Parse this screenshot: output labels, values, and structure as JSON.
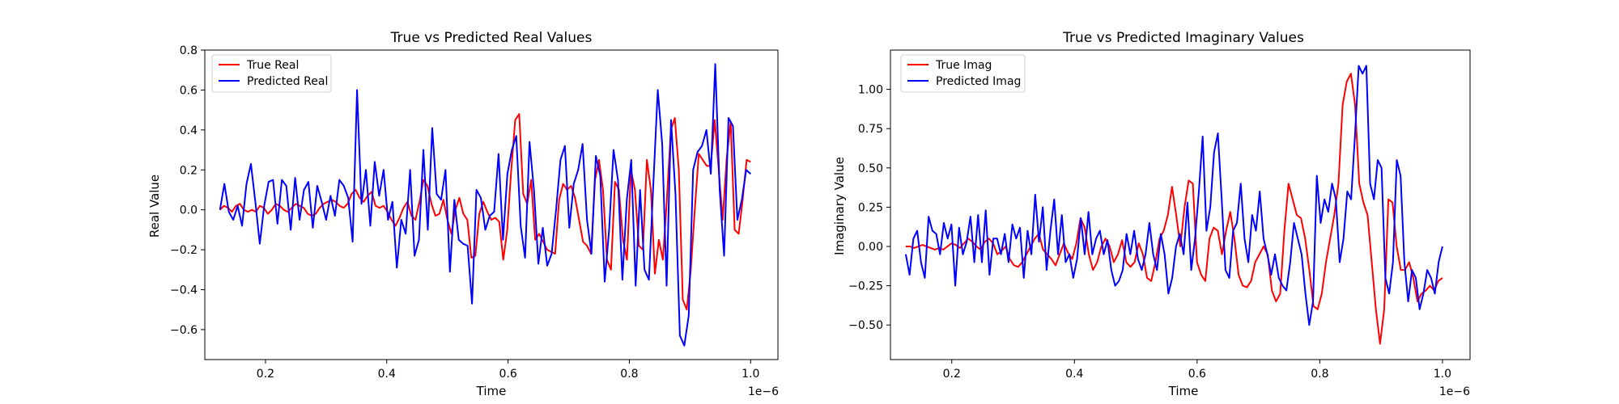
{
  "chart_data": [
    {
      "type": "line",
      "title": "True vs Predicted Real Values",
      "xlabel": "Time",
      "ylabel": "Real Value",
      "x_offset_label": "1e−6",
      "xlim": [
        0.1,
        1.045
      ],
      "ylim": [
        -0.75,
        0.8
      ],
      "x_ticks": [
        0.2,
        0.4,
        0.6,
        0.8,
        1.0
      ],
      "x_tick_labels": [
        "0.2",
        "0.4",
        "0.6",
        "0.8",
        "1.0"
      ],
      "y_ticks": [
        -0.6,
        -0.4,
        -0.2,
        0.0,
        0.2,
        0.4,
        0.6,
        0.8
      ],
      "y_tick_labels": [
        "−0.6",
        "−0.4",
        "−0.2",
        "0.0",
        "0.2",
        "0.4",
        "0.6",
        "0.8"
      ],
      "x_start": 0.125,
      "x_end": 1.0,
      "legend_position": "top-left",
      "series": [
        {
          "name": "True Real",
          "color": "#ff0000",
          "values": [
            0.0,
            0.02,
            0.01,
            -0.01,
            0.02,
            0.03,
            0.0,
            -0.01,
            0.0,
            -0.01,
            0.02,
            0.01,
            -0.02,
            0.0,
            0.03,
            0.02,
            0.0,
            -0.01,
            0.01,
            0.03,
            0.02,
            0.01,
            -0.02,
            -0.03,
            -0.02,
            0.01,
            0.03,
            0.04,
            0.05,
            0.04,
            0.02,
            0.01,
            0.03,
            0.08,
            0.1,
            0.06,
            0.04,
            0.07,
            0.09,
            0.02,
            0.01,
            0.02,
            -0.01,
            -0.05,
            -0.08,
            -0.04,
            0.01,
            0.04,
            -0.03,
            -0.05,
            0.04,
            0.15,
            0.12,
            0.03,
            -0.03,
            -0.02,
            0.05,
            -0.05,
            -0.12,
            0.0,
            0.06,
            -0.02,
            -0.05,
            -0.24,
            -0.23,
            -0.02,
            0.04,
            -0.01,
            -0.05,
            -0.04,
            -0.06,
            -0.25,
            -0.1,
            0.2,
            0.45,
            0.48,
            0.08,
            0.03,
            0.15,
            -0.15,
            -0.12,
            -0.16,
            -0.2,
            -0.21,
            -0.22,
            0.05,
            0.13,
            0.1,
            0.12,
            0.06,
            -0.05,
            -0.16,
            -0.18,
            -0.22,
            0.15,
            0.25,
            0.1,
            -0.25,
            -0.3,
            0.14,
            0.1,
            -0.15,
            -0.25,
            0.2,
            0.1,
            -0.18,
            -0.2,
            0.25,
            0.1,
            -0.32,
            -0.15,
            -0.25,
            0.05,
            0.4,
            0.46,
            0.2,
            -0.45,
            -0.5,
            -0.3,
            0.0,
            0.28,
            0.25,
            0.22,
            0.22,
            0.45,
            0.2,
            -0.05,
            0.26,
            0.44,
            -0.1,
            -0.12,
            0.05,
            0.25,
            0.24
          ]
        },
        {
          "name": "Predicted Real",
          "color": "#0000ff",
          "values": [
            0.0,
            0.13,
            -0.01,
            -0.05,
            0.02,
            -0.08,
            0.13,
            0.23,
            0.04,
            -0.17,
            0.02,
            0.14,
            0.15,
            -0.07,
            0.15,
            0.12,
            -0.1,
            0.16,
            -0.05,
            0.1,
            0.14,
            -0.09,
            0.12,
            0.04,
            -0.05,
            0.07,
            -0.03,
            0.15,
            0.12,
            0.06,
            -0.16,
            0.6,
            0.03,
            0.2,
            -0.08,
            0.24,
            0.07,
            0.2,
            -0.05,
            0.04,
            -0.29,
            -0.05,
            -0.12,
            0.2,
            -0.23,
            -0.15,
            0.3,
            -0.1,
            0.41,
            0.08,
            0.05,
            0.2,
            -0.31,
            0.05,
            -0.15,
            -0.17,
            -0.18,
            -0.47,
            0.1,
            0.06,
            -0.1,
            -0.03,
            -0.01,
            0.28,
            -0.15,
            0.18,
            0.3,
            0.37,
            -0.08,
            -0.24,
            0.34,
            0.1,
            -0.27,
            -0.09,
            -0.28,
            -0.22,
            0.0,
            0.25,
            0.32,
            -0.09,
            0.13,
            0.2,
            0.33,
            -0.05,
            -0.22,
            0.27,
            0.17,
            -0.36,
            -0.1,
            0.3,
            0.15,
            -0.35,
            0.05,
            0.25,
            -0.38,
            0.1,
            -0.3,
            -0.35,
            0.13,
            0.6,
            0.33,
            -0.38,
            0.45,
            0.08,
            -0.63,
            -0.68,
            -0.53,
            0.2,
            0.29,
            0.32,
            0.4,
            0.18,
            0.73,
            0.1,
            -0.23,
            0.46,
            0.42,
            -0.05,
            0.05,
            0.2,
            0.18
          ]
        }
      ]
    },
    {
      "type": "line",
      "title": "True vs Predicted Imaginary Values",
      "xlabel": "Time",
      "ylabel": "Imaginary Value",
      "x_offset_label": "1e−6",
      "xlim": [
        0.1,
        1.045
      ],
      "ylim": [
        -0.72,
        1.25
      ],
      "x_ticks": [
        0.2,
        0.4,
        0.6,
        0.8,
        1.0
      ],
      "x_tick_labels": [
        "0.2",
        "0.4",
        "0.6",
        "0.8",
        "1.0"
      ],
      "y_ticks": [
        -0.5,
        -0.25,
        0.0,
        0.25,
        0.5,
        0.75,
        1.0
      ],
      "y_tick_labels": [
        "−0.50",
        "−0.25",
        "0.00",
        "0.25",
        "0.50",
        "0.75",
        "1.00"
      ],
      "x_start": 0.125,
      "x_end": 1.0,
      "legend_position": "top-left",
      "series": [
        {
          "name": "True Imag",
          "color": "#ff0000",
          "values": [
            0.0,
            0.0,
            -0.01,
            0.0,
            0.01,
            0.0,
            -0.01,
            -0.02,
            -0.01,
            -0.02,
            0.0,
            0.02,
            0.01,
            -0.01,
            0.02,
            0.05,
            0.03,
            0.0,
            -0.02,
            0.03,
            0.05,
            0.02,
            -0.05,
            -0.03,
            0.0,
            -0.08,
            -0.12,
            -0.13,
            -0.1,
            -0.05,
            0.0,
            0.05,
            0.08,
            -0.02,
            -0.05,
            -0.08,
            -0.12,
            -0.05,
            0.02,
            -0.04,
            -0.08,
            0.02,
            0.18,
            0.12,
            -0.05,
            -0.15,
            -0.1,
            0.0,
            0.05,
            0.0,
            -0.1,
            -0.05,
            0.04,
            -0.1,
            -0.13,
            -0.1,
            0.02,
            -0.05,
            -0.2,
            -0.22,
            -0.1,
            0.05,
            0.1,
            0.2,
            0.38,
            0.2,
            0.0,
            0.25,
            0.42,
            0.4,
            -0.1,
            -0.18,
            -0.22,
            0.05,
            0.12,
            0.1,
            -0.05,
            0.1,
            0.22,
            0.05,
            -0.18,
            -0.25,
            -0.26,
            -0.22,
            -0.1,
            -0.05,
            0.0,
            -0.05,
            -0.28,
            -0.35,
            -0.3,
            0.1,
            0.4,
            0.3,
            0.2,
            0.18,
            0.05,
            -0.15,
            -0.38,
            -0.4,
            -0.3,
            -0.1,
            0.05,
            0.2,
            0.4,
            0.9,
            1.05,
            1.1,
            0.9,
            0.4,
            0.28,
            0.2,
            -0.1,
            -0.4,
            -0.62,
            -0.4,
            0.3,
            0.28,
            0.0,
            -0.15,
            -0.15,
            -0.1,
            -0.2,
            -0.35,
            -0.3,
            -0.28,
            -0.25,
            -0.28,
            -0.22,
            -0.2
          ]
        },
        {
          "name": "Predicted Imag",
          "color": "#0000ff",
          "values": [
            -0.05,
            -0.18,
            0.05,
            0.1,
            -0.1,
            -0.2,
            0.19,
            0.1,
            0.08,
            -0.05,
            0.15,
            0.05,
            0.14,
            -0.25,
            0.12,
            -0.05,
            0.03,
            0.19,
            -0.1,
            0.2,
            -0.1,
            0.23,
            -0.18,
            0.05,
            0.05,
            -0.05,
            0.08,
            -0.1,
            0.14,
            0.05,
            0.12,
            -0.2,
            0.1,
            -0.05,
            0.33,
            0.03,
            0.25,
            -0.15,
            0.1,
            0.3,
            -0.05,
            0.2,
            -0.1,
            -0.05,
            -0.2,
            -0.08,
            0.18,
            -0.05,
            0.22,
            -0.05,
            0.05,
            0.1,
            -0.05,
            0.04,
            -0.15,
            -0.25,
            -0.22,
            -0.15,
            0.08,
            -0.05,
            0.1,
            -0.08,
            -0.15,
            -0.05,
            0.15,
            -0.05,
            -0.15,
            0.08,
            -0.05,
            -0.3,
            -0.2,
            0.0,
            0.08,
            -0.05,
            0.28,
            -0.15,
            0.05,
            0.35,
            0.7,
            0.1,
            0.25,
            0.6,
            0.72,
            0.3,
            -0.15,
            -0.2,
            0.1,
            0.15,
            0.4,
            0.05,
            -0.1,
            0.2,
            0.1,
            0.35,
            0.05,
            -0.05,
            -0.18,
            -0.05,
            -0.2,
            -0.25,
            -0.28,
            -0.1,
            0.15,
            0.05,
            -0.05,
            -0.3,
            -0.5,
            -0.35,
            0.45,
            0.15,
            0.3,
            0.22,
            0.4,
            0.3,
            -0.1,
            0.05,
            0.35,
            0.3,
            0.7,
            1.15,
            1.1,
            1.15,
            0.4,
            0.3,
            0.55,
            0.5,
            -0.2,
            -0.3,
            -0.1,
            0.55,
            0.45,
            -0.1,
            -0.35,
            -0.15,
            -0.2,
            -0.4,
            -0.3,
            -0.15,
            -0.2,
            -0.3,
            -0.1,
            0.0
          ]
        }
      ]
    }
  ]
}
